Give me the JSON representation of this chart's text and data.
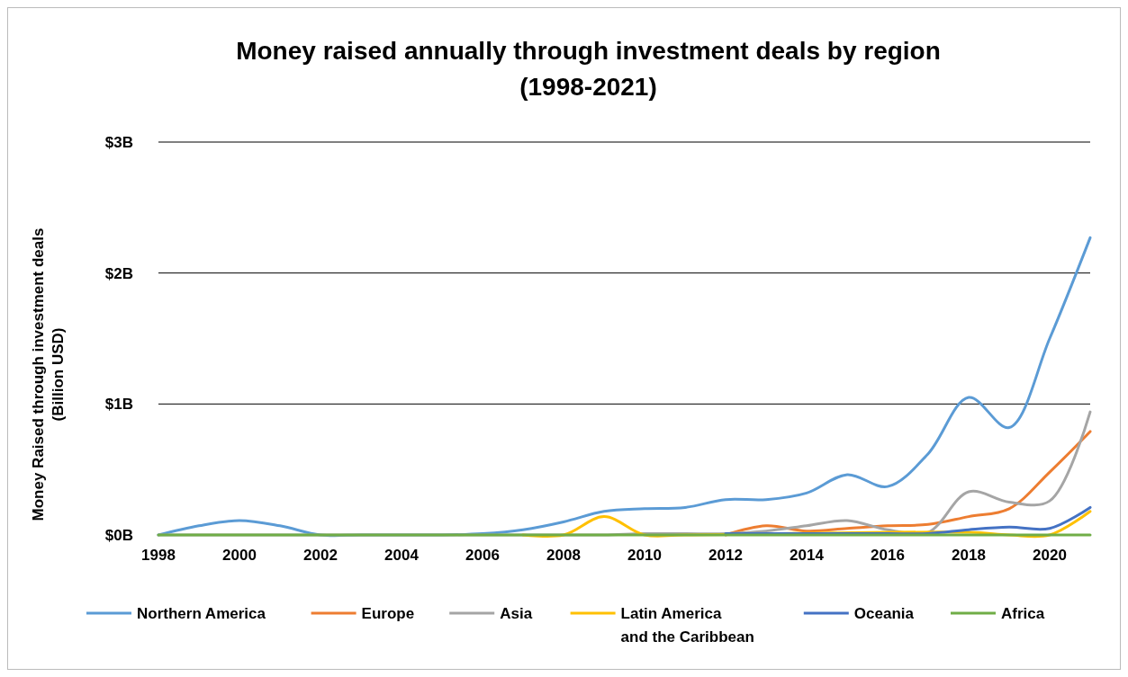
{
  "chart_data": {
    "type": "line",
    "title": "Money raised annually through investment deals by region\n(1998-2021)",
    "ylabel": "Money Raised through investment deals\n(Billion USD)",
    "x": [
      1998,
      1999,
      2000,
      2001,
      2002,
      2003,
      2004,
      2005,
      2006,
      2007,
      2008,
      2009,
      2010,
      2011,
      2012,
      2013,
      2014,
      2015,
      2016,
      2017,
      2018,
      2019,
      2020,
      2021
    ],
    "series": [
      {
        "name": "Northern America",
        "color": "#5b9bd5",
        "values": [
          0,
          0.07,
          0.11,
          0.07,
          0,
          0,
          0,
          0,
          0.01,
          0.04,
          0.1,
          0.18,
          0.2,
          0.21,
          0.27,
          0.27,
          0.32,
          0.46,
          0.37,
          0.62,
          1.05,
          0.82,
          1.5,
          2.27
        ]
      },
      {
        "name": "Europe",
        "color": "#ed7d31",
        "values": [
          null,
          null,
          null,
          null,
          null,
          null,
          null,
          null,
          null,
          null,
          null,
          null,
          null,
          null,
          0,
          0.07,
          0.03,
          0.05,
          0.07,
          0.08,
          0.14,
          0.2,
          0.48,
          0.79
        ]
      },
      {
        "name": "Asia",
        "color": "#a5a5a5",
        "values": [
          0,
          0,
          0,
          0,
          0,
          0,
          0,
          0,
          0,
          0,
          0,
          0,
          0.01,
          0.01,
          0.01,
          0.03,
          0.07,
          0.11,
          0.04,
          0.02,
          0.33,
          0.25,
          0.26,
          0.94
        ]
      },
      {
        "name": "Latin America\nand the Caribbean",
        "color": "#ffc000",
        "values": [
          null,
          null,
          null,
          null,
          null,
          null,
          null,
          null,
          null,
          0,
          0,
          0.14,
          0,
          0,
          null,
          null,
          null,
          null,
          null,
          null,
          0.02,
          0,
          0,
          0.18
        ]
      },
      {
        "name": "Oceania",
        "color": "#4472c4",
        "values": [
          null,
          null,
          null,
          null,
          null,
          null,
          null,
          null,
          null,
          null,
          null,
          null,
          null,
          null,
          0.01,
          0.01,
          0.01,
          0.01,
          0.01,
          0.01,
          0.04,
          0.06,
          0.05,
          0.21
        ]
      },
      {
        "name": "Africa",
        "color": "#70ad47",
        "values": [
          0,
          0,
          0,
          0,
          0,
          0,
          0,
          0,
          0,
          0,
          0,
          0,
          0,
          0,
          0,
          0,
          0,
          0,
          0,
          0,
          0,
          0,
          0,
          0
        ]
      }
    ],
    "xlim": [
      1998,
      2021
    ],
    "xticks": [
      1998,
      2000,
      2002,
      2004,
      2006,
      2008,
      2010,
      2012,
      2014,
      2016,
      2018,
      2020
    ],
    "ylim": [
      0,
      3
    ],
    "yticks": [
      {
        "value": 0,
        "label": "$0B"
      },
      {
        "value": 1,
        "label": "$1B"
      },
      {
        "value": 2,
        "label": "$2B"
      },
      {
        "value": 3,
        "label": "$3B"
      }
    ],
    "grid": "y",
    "legend": "bottom",
    "marker": "none",
    "line_style": "solid"
  }
}
